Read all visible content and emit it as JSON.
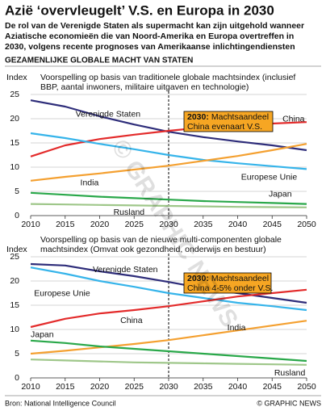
{
  "title": "Azië ‘overvleugelt’ V.S. en Europa in 2030",
  "subtitle": [
    "De rol van de Verenigde Staten als supermacht kan zijn uitgehold wanneer",
    "Aziatische economieën die van Noord-Amerika en Europa overtreffen in",
    "2030, volgens recente prognoses van Amerikaanse inlichtingendiensten"
  ],
  "section": "GEZAMENLIJKE GLOBALE MACHT VAN STATEN",
  "source": "Bron: National Intelligence Council",
  "credit": "© GRAPHIC NEWS",
  "chart_data": [
    {
      "type": "line",
      "title": [
        "Voorspelling op basis van traditionele globale machtsindex (inclusief",
        "BBP, aantal inwoners, militaire uitgaven en technologie)"
      ],
      "y_label": "Index",
      "annotation": {
        "lead": "2030:",
        "lines": [
          "Machtsaandeel",
          "China evenaart V.S."
        ]
      },
      "x": [
        2010,
        2015,
        2020,
        2025,
        2030,
        2035,
        2040,
        2045,
        2050
      ],
      "xlim": [
        2010,
        2050
      ],
      "xticks": [
        2010,
        2015,
        2020,
        2025,
        2030,
        2035,
        2040,
        2045,
        2050
      ],
      "ylim": [
        0,
        25
      ],
      "yticks": [
        0,
        5,
        10,
        15,
        20,
        25
      ],
      "grid": true,
      "series": [
        {
          "name": "Verenigde Staten",
          "color": "#2e2d7a",
          "values": [
            23.8,
            22.5,
            20.5,
            18.8,
            17.3,
            16.2,
            15.3,
            14.5,
            13.5
          ]
        },
        {
          "name": "China",
          "color": "#e32b2b",
          "values": [
            12.2,
            14.5,
            15.8,
            16.7,
            17.5,
            18.2,
            18.7,
            19.0,
            19.3
          ]
        },
        {
          "name": "Europese Unie",
          "color": "#36b4ea",
          "values": [
            17.0,
            16.0,
            14.8,
            13.7,
            12.5,
            11.5,
            10.8,
            10.2,
            9.6
          ]
        },
        {
          "name": "India",
          "color": "#f4a030",
          "values": [
            7.2,
            8.0,
            8.7,
            9.5,
            10.3,
            11.3,
            12.3,
            13.5,
            14.8
          ]
        },
        {
          "name": "Japan",
          "color": "#2aa84a",
          "values": [
            4.7,
            4.3,
            3.9,
            3.6,
            3.3,
            3.0,
            2.8,
            2.6,
            2.4
          ]
        },
        {
          "name": "Rusland",
          "color": "#9fc78a",
          "values": [
            2.4,
            2.3,
            2.2,
            2.1,
            2.0,
            1.9,
            1.8,
            1.75,
            1.7
          ]
        }
      ]
    },
    {
      "type": "line",
      "title": [
        "Voorspelling op basis van de nieuwe multi-componenten globale",
        "machtsindex (Omvat ook gezondheid, onderwijs en bestuur)"
      ],
      "y_label": "Index",
      "annotation": {
        "lead": "2030:",
        "lines": [
          "Machtsaandeel",
          "China 4-5% onder V.S."
        ]
      },
      "x": [
        2010,
        2015,
        2020,
        2025,
        2030,
        2035,
        2040,
        2045,
        2050
      ],
      "xlim": [
        2010,
        2050
      ],
      "xticks": [
        2010,
        2015,
        2020,
        2025,
        2030,
        2035,
        2040,
        2045,
        2050
      ],
      "ylim": [
        0,
        25
      ],
      "yticks": [
        0,
        5,
        10,
        15,
        20,
        25
      ],
      "grid": true,
      "series": [
        {
          "name": "Verenigde Staten",
          "color": "#2e2d7a",
          "values": [
            23.5,
            23.2,
            22.0,
            21.0,
            19.8,
            18.5,
            17.5,
            16.5,
            15.5
          ]
        },
        {
          "name": "Europese Unie",
          "color": "#36b4ea",
          "values": [
            22.8,
            21.5,
            20.0,
            18.8,
            17.5,
            16.5,
            15.5,
            14.8,
            14.0
          ]
        },
        {
          "name": "China",
          "color": "#e32b2b",
          "values": [
            10.5,
            12.2,
            13.3,
            14.0,
            14.8,
            15.8,
            16.8,
            17.5,
            18.2
          ]
        },
        {
          "name": "India",
          "color": "#f4a030",
          "values": [
            5.0,
            5.6,
            6.3,
            7.0,
            7.8,
            8.8,
            9.8,
            10.8,
            11.8
          ]
        },
        {
          "name": "Japan",
          "color": "#2aa84a",
          "values": [
            7.7,
            7.2,
            6.5,
            6.0,
            5.5,
            5.0,
            4.5,
            4.0,
            3.5
          ]
        },
        {
          "name": "Rusland",
          "color": "#9fc78a",
          "values": [
            3.8,
            3.6,
            3.4,
            3.2,
            3.1,
            3.0,
            2.9,
            2.8,
            2.7
          ]
        }
      ]
    }
  ]
}
